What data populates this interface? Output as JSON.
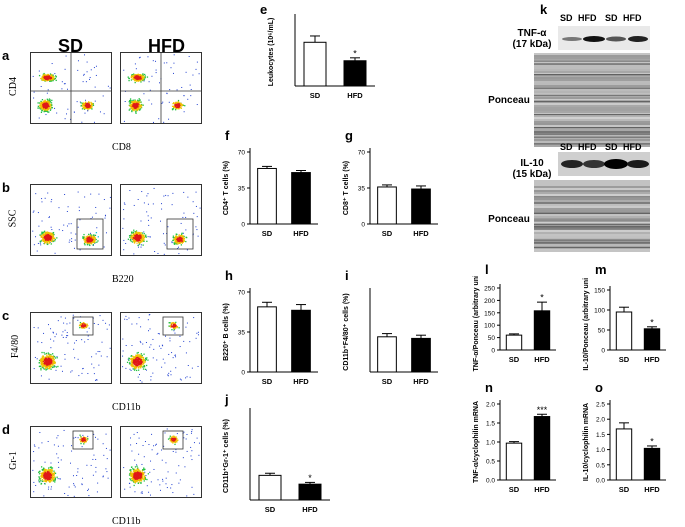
{
  "figure": {
    "column_headers": {
      "sd": "SD",
      "hfd": "HFD"
    },
    "flow_panels": [
      {
        "letter": "a",
        "y_axis": "CD4",
        "x_axis": "CD8",
        "kind": "quadrant"
      },
      {
        "letter": "b",
        "y_axis": "SSC",
        "x_axis": "B220",
        "kind": "gate-br"
      },
      {
        "letter": "c",
        "y_axis": "F4/80",
        "x_axis": "CD11b",
        "kind": "gate-tr"
      },
      {
        "letter": "d",
        "y_axis": "Gr-1",
        "x_axis": "CD11b",
        "kind": "gate-tr"
      }
    ],
    "blots": {
      "letter": "k",
      "lane_labels": [
        "SD",
        "HFD",
        "SD",
        "HFD"
      ],
      "tnf_label_line1": "TNF-α",
      "tnf_label_line2": "(17 kDa)",
      "ponceau_label": "Ponceau",
      "il10_label_line1": "IL-10",
      "il10_label_line2": "(15 kDa)",
      "ponceau_label_2": "Ponceau"
    },
    "colors": {
      "sd_fill": "#ffffff",
      "hfd_fill": "#000000",
      "axis": "#000000"
    }
  },
  "chart_data": [
    {
      "id": "e",
      "type": "bar",
      "categories": [
        "SD",
        "HFD"
      ],
      "values": [
        9.0,
        5.2
      ],
      "errors": [
        1.3,
        0.6
      ],
      "ylabel": "Leukocytes (10⁶/mL)",
      "ylim": [
        0,
        14
      ],
      "yticks": [],
      "annotations": [
        "",
        "*"
      ]
    },
    {
      "id": "f",
      "type": "bar",
      "categories": [
        "SD",
        "HFD"
      ],
      "values": [
        54,
        50
      ],
      "errors": [
        2,
        2
      ],
      "ylabel": "CD4⁺ T cells (%)",
      "ylim": [
        0,
        70
      ],
      "yticks": [
        0,
        35,
        70
      ],
      "annotations": [
        "",
        ""
      ]
    },
    {
      "id": "g",
      "type": "bar",
      "categories": [
        "SD",
        "HFD"
      ],
      "values": [
        36,
        34
      ],
      "errors": [
        2,
        3
      ],
      "ylabel": "CD8⁺ T cells (%)",
      "ylim": [
        0,
        70
      ],
      "yticks": [
        0,
        35,
        70
      ],
      "annotations": [
        "",
        ""
      ]
    },
    {
      "id": "h",
      "type": "bar",
      "categories": [
        "SD",
        "HFD"
      ],
      "values": [
        57,
        54
      ],
      "errors": [
        4,
        5
      ],
      "ylabel": "B220⁺ B cells (%)",
      "ylim": [
        0,
        70
      ],
      "yticks": [
        0,
        35,
        70
      ],
      "annotations": [
        "",
        ""
      ]
    },
    {
      "id": "i",
      "type": "bar",
      "categories": [
        "SD",
        "HFD"
      ],
      "values": [
        22,
        21
      ],
      "errors": [
        2,
        2
      ],
      "ylabel": "CD11b⁺F4/80⁺ cells (%)",
      "ylim": [
        0,
        50
      ],
      "yticks": [],
      "annotations": [
        "",
        ""
      ]
    },
    {
      "id": "j",
      "type": "bar",
      "categories": [
        "SD",
        "HFD"
      ],
      "values": [
        1.4,
        0.9
      ],
      "errors": [
        0.12,
        0.1
      ],
      "ylabel": "CD11b⁺Gr-1⁺ cells (%)",
      "ylim": [
        0,
        5
      ],
      "yticks": [],
      "annotations": [
        "",
        "*"
      ]
    },
    {
      "id": "l",
      "type": "bar",
      "categories": [
        "SD",
        "HFD"
      ],
      "values": [
        60,
        158
      ],
      "errors": [
        5,
        35
      ],
      "ylabel": "TNF-α/Ponceau (arbitrary units)",
      "ylim": [
        0,
        250
      ],
      "yticks": [
        0,
        50,
        100,
        150,
        200,
        250
      ],
      "annotations": [
        "",
        "*"
      ]
    },
    {
      "id": "m",
      "type": "bar",
      "categories": [
        "SD",
        "HFD"
      ],
      "values": [
        95,
        53
      ],
      "errors": [
        12,
        5
      ],
      "ylabel": "IL-10/Ponceau (arbitrary units)",
      "ylim": [
        0,
        150
      ],
      "yticks": [
        0,
        50,
        100,
        150
      ],
      "annotations": [
        "",
        "*"
      ]
    },
    {
      "id": "n",
      "type": "bar",
      "categories": [
        "SD",
        "HFD"
      ],
      "values": [
        0.97,
        1.67
      ],
      "errors": [
        0.04,
        0.06
      ],
      "ylabel": "TNF-α/cyclophilin mRNA",
      "ylim": [
        0,
        2.0
      ],
      "yticks": [
        0.0,
        0.5,
        1.0,
        1.5,
        2.0
      ],
      "annotations": [
        "",
        "***"
      ]
    },
    {
      "id": "o",
      "type": "bar",
      "categories": [
        "SD",
        "HFD"
      ],
      "values": [
        1.68,
        1.04
      ],
      "errors": [
        0.2,
        0.08
      ],
      "ylabel": "IL-10/cyclophilin mRNA",
      "ylim": [
        0,
        2.5
      ],
      "yticks": [
        0.0,
        0.5,
        1.0,
        1.5,
        2.0,
        2.5
      ],
      "annotations": [
        "",
        "*"
      ]
    }
  ]
}
